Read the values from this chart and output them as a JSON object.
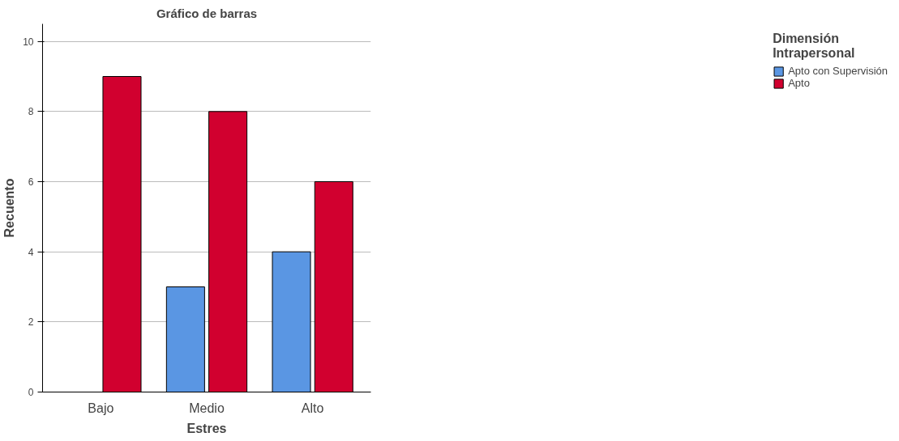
{
  "chart_data": {
    "type": "bar",
    "title": "Gráfico de barras",
    "xlabel": "Estres",
    "ylabel": "Recuento",
    "legend_title": "Dimensión\nIntrapersonal",
    "categories": [
      "Bajo",
      "Medio",
      "Alto"
    ],
    "series": [
      {
        "name": "Apto con Supervisión",
        "color": "#5a96e3",
        "values": [
          null,
          3,
          4
        ]
      },
      {
        "name": "Apto",
        "color": "#d1002f",
        "values": [
          9,
          8,
          6
        ]
      }
    ],
    "ylim": [
      0,
      10.5
    ],
    "yticks": [
      0,
      2,
      4,
      6,
      8,
      10
    ],
    "grid": "y",
    "legend": "right"
  }
}
